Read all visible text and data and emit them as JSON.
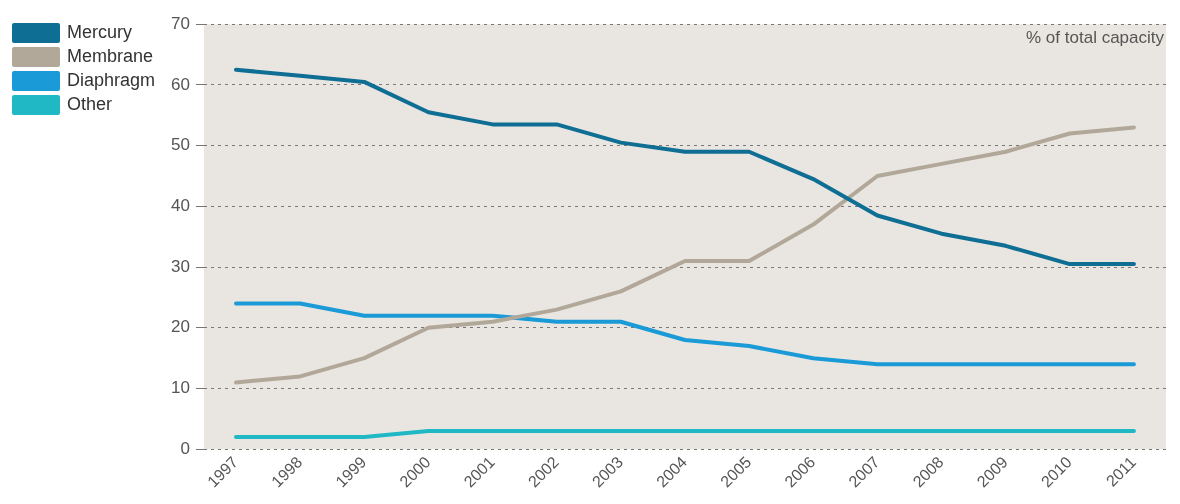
{
  "chart_data": {
    "type": "line",
    "categories": [
      "1997",
      "1998",
      "1999",
      "2000",
      "2001",
      "2002",
      "2003",
      "2004",
      "2005",
      "2006",
      "2007",
      "2008",
      "2009",
      "2010",
      "2011"
    ],
    "series": [
      {
        "name": "Mercury",
        "color": "#0e6e94",
        "values": [
          62.5,
          61.5,
          60.5,
          55.5,
          53.5,
          53.5,
          50.5,
          49,
          49,
          44.5,
          38.5,
          35.5,
          33.5,
          30.5,
          30.5
        ]
      },
      {
        "name": "Membrane",
        "color": "#b2a89a",
        "values": [
          11,
          12,
          15,
          20,
          21,
          23,
          26,
          31,
          31,
          37,
          45,
          47,
          49,
          52,
          53
        ]
      },
      {
        "name": "Diaphragm",
        "color": "#1a9ad6",
        "values": [
          24,
          24,
          22,
          22,
          22,
          21,
          21,
          18,
          17,
          15,
          14,
          14,
          14,
          14,
          14
        ]
      },
      {
        "name": "Other",
        "color": "#20b8c4",
        "values": [
          2,
          2,
          2,
          3,
          3,
          3,
          3,
          3,
          3,
          3,
          3,
          3,
          3,
          3,
          3
        ]
      }
    ],
    "ylim": [
      0,
      70
    ],
    "yticks": [
      0,
      10,
      20,
      30,
      40,
      50,
      60,
      70
    ],
    "grid": "y",
    "legend": "top left",
    "marker": "none",
    "line_style": "solid",
    "annotations": [
      "% of total capacity"
    ]
  }
}
